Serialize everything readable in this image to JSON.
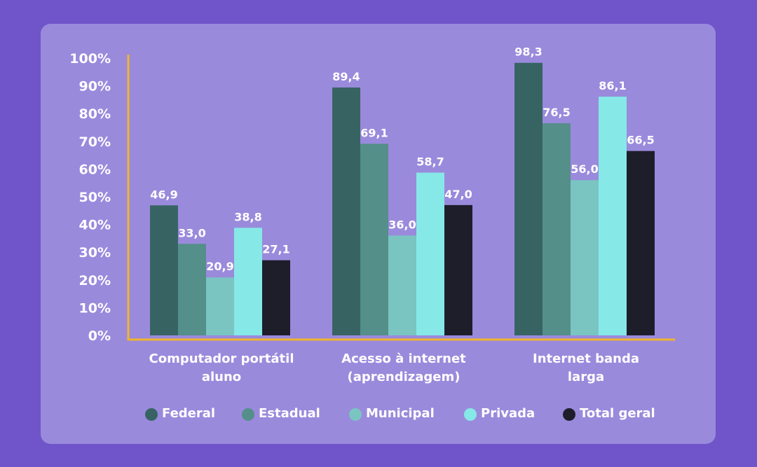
{
  "chart_data": {
    "type": "bar",
    "categories": [
      [
        "Computador portátil",
        "aluno"
      ],
      [
        "Acesso à internet",
        "(aprendizagem)"
      ],
      [
        "Internet banda",
        "larga"
      ]
    ],
    "series": [
      {
        "name": "Federal",
        "color": "#376463",
        "values": [
          46.9,
          89.4,
          98.3
        ],
        "labels": [
          "46,9",
          "89,4",
          "98,3"
        ]
      },
      {
        "name": "Estadual",
        "color": "#548f8a",
        "values": [
          33.0,
          69.1,
          76.5
        ],
        "labels": [
          "33,0",
          "69,1",
          "76,5"
        ]
      },
      {
        "name": "Municipal",
        "color": "#7ac4c2",
        "values": [
          20.9,
          36.0,
          56.0
        ],
        "labels": [
          "20,9",
          "36,0",
          "56,0"
        ]
      },
      {
        "name": "Privada",
        "color": "#86e8e7",
        "values": [
          38.8,
          58.7,
          86.1
        ],
        "labels": [
          "38,8",
          "58,7",
          "86,1"
        ]
      },
      {
        "name": "Total geral",
        "color": "#1e1e2b",
        "values": [
          27.1,
          47.0,
          66.5
        ],
        "labels": [
          "27,1",
          "47,0",
          "66,5"
        ]
      }
    ],
    "yticks": [
      "0%",
      "10%",
      "20%",
      "30%",
      "40%",
      "50%",
      "60%",
      "70%",
      "80%",
      "90%",
      "100%"
    ],
    "ylim": [
      0,
      100
    ],
    "legend_position": "bottom",
    "axis_color": "#f0b429"
  }
}
